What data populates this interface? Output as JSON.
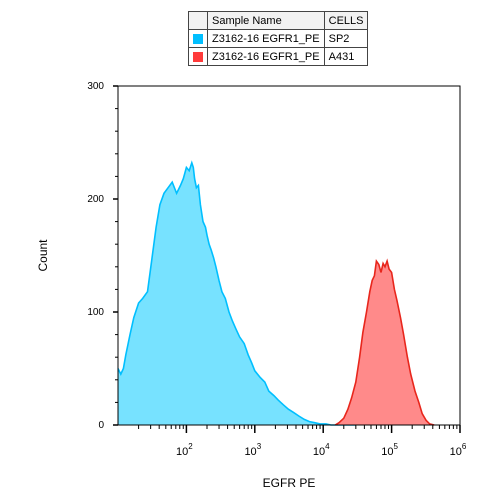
{
  "legend": {
    "headers": [
      "Sample Name",
      "CELLS"
    ],
    "rows": [
      {
        "sample": "Z3162-16 EGFR1_PE",
        "cells": "SP2",
        "color": "#00bfff"
      },
      {
        "sample": "Z3162-16 EGFR1_PE",
        "cells": "A431",
        "color": "#ff3b3b"
      }
    ]
  },
  "chart_data": {
    "type": "area",
    "xlabel": "EGFR PE",
    "ylabel": "Count",
    "x_scale": "log",
    "xlim": [
      10,
      1000000
    ],
    "ylim": [
      0,
      300
    ],
    "y_ticks": [
      0,
      100,
      200,
      300
    ],
    "x_ticks": [
      {
        "base": "10",
        "exp": "2",
        "value": 100
      },
      {
        "base": "10",
        "exp": "3",
        "value": 1000
      },
      {
        "base": "10",
        "exp": "4",
        "value": 10000
      },
      {
        "base": "10",
        "exp": "5",
        "value": 100000
      },
      {
        "base": "10",
        "exp": "6",
        "value": 1000000
      }
    ],
    "grid": false,
    "series": [
      {
        "name": "SP2",
        "color": "#00bfff",
        "fill": "#77e2ff",
        "x": [
          10,
          11,
          12,
          13,
          15,
          17,
          20,
          23,
          27,
          31,
          36,
          41,
          47,
          54,
          62,
          72,
          82,
          90,
          100,
          110,
          120,
          126,
          132,
          140,
          150,
          160,
          175,
          190,
          200,
          215,
          230,
          250,
          270,
          300,
          330,
          370,
          420,
          470,
          530,
          600,
          700,
          800,
          900,
          1000,
          1200,
          1400,
          1600,
          1900,
          2200,
          2600,
          3100,
          3700,
          4400,
          5300,
          6300,
          7500,
          9000,
          11000,
          13000,
          16000,
          20000,
          25000,
          30000
        ],
        "y": [
          50,
          45,
          50,
          62,
          80,
          95,
          108,
          112,
          118,
          145,
          175,
          195,
          205,
          210,
          215,
          205,
          212,
          218,
          228,
          225,
          232,
          228,
          218,
          210,
          212,
          195,
          180,
          175,
          168,
          160,
          155,
          148,
          140,
          128,
          118,
          112,
          100,
          92,
          85,
          78,
          72,
          62,
          55,
          48,
          42,
          38,
          30,
          26,
          22,
          18,
          14,
          11,
          8,
          5,
          3,
          2,
          1,
          1,
          0,
          0,
          0,
          0,
          0
        ]
      },
      {
        "name": "A431",
        "color": "#e8261c",
        "fill": "#ff8a8a",
        "x": [
          15000,
          17000,
          20000,
          23000,
          26000,
          30000,
          34000,
          38000,
          43000,
          48000,
          52000,
          56000,
          60000,
          65000,
          70000,
          75000,
          80000,
          86000,
          92000,
          100000,
          110000,
          120000,
          135000,
          150000,
          170000,
          190000,
          220000,
          250000,
          280000,
          320000,
          360000,
          420000
        ],
        "y": [
          0,
          2,
          6,
          14,
          24,
          38,
          60,
          82,
          100,
          118,
          128,
          132,
          145,
          142,
          135,
          143,
          140,
          145,
          138,
          135,
          120,
          110,
          95,
          80,
          60,
          45,
          30,
          20,
          10,
          4,
          1,
          0
        ]
      }
    ]
  }
}
